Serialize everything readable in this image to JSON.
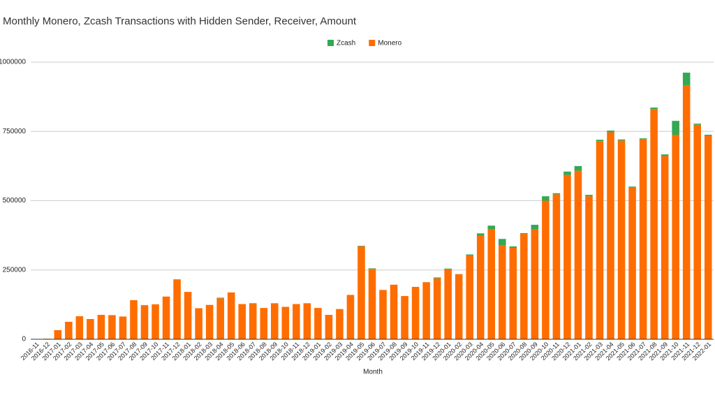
{
  "chart_data": {
    "type": "stacked_bar",
    "title": "Monthly Monero, Zcash Transactions with Hidden Sender, Receiver, Amount",
    "x_label": "Month",
    "categories": [
      "2016-11",
      "2016-12",
      "2017-01",
      "2017-02",
      "2017-03",
      "2017-04",
      "2017-05",
      "2017-06",
      "2017-07",
      "2017-08",
      "2017-09",
      "2017-10",
      "2017-11",
      "2017-12",
      "2018-01",
      "2018-02",
      "2018-03",
      "2018-04",
      "2018-05",
      "2018-06",
      "2018-07",
      "2018-08",
      "2018-09",
      "2018-10",
      "2018-11",
      "2018-12",
      "2019-01",
      "2019-02",
      "2019-03",
      "2019-04",
      "2019-05",
      "2019-06",
      "2019-07",
      "2019-08",
      "2019-09",
      "2019-10",
      "2019-11",
      "2019-12",
      "2020-01",
      "2020-02",
      "2020-03",
      "2020-04",
      "2020-05",
      "2020-06",
      "2020-07",
      "2020-08",
      "2020-09",
      "2020-10",
      "2020-11",
      "2020-12",
      "2021-01",
      "2021-02",
      "2021-03",
      "2021-04",
      "2021-05",
      "2021-06",
      "2021-07",
      "2021-08",
      "2021-09",
      "2021-10",
      "2021-11",
      "2021-12",
      "2022-01"
    ],
    "series": [
      {
        "name": "Zcash",
        "color": "#34a853",
        "values": [
          0,
          0,
          0,
          0,
          0,
          0,
          0,
          0,
          0,
          0,
          0,
          0,
          0,
          2000,
          0,
          0,
          0,
          2000,
          0,
          0,
          2000,
          0,
          0,
          0,
          0,
          0,
          0,
          0,
          0,
          0,
          2000,
          2000,
          0,
          0,
          0,
          0,
          0,
          3000,
          2000,
          0,
          4000,
          8000,
          12000,
          22000,
          5000,
          3000,
          17000,
          16000,
          4000,
          12000,
          17000,
          5000,
          5000,
          6000,
          4000,
          4000,
          3000,
          5000,
          6000,
          50000,
          45000,
          4000,
          4000
        ]
      },
      {
        "name": "Monero",
        "color": "#ff6d01",
        "values": [
          1000,
          2000,
          33000,
          63000,
          83000,
          73000,
          88000,
          87000,
          82000,
          141000,
          123000,
          126000,
          154000,
          214000,
          171000,
          112000,
          124000,
          148000,
          169000,
          127000,
          128000,
          113000,
          130000,
          117000,
          127000,
          130000,
          113000,
          88000,
          109000,
          160000,
          335000,
          254000,
          178000,
          197000,
          156000,
          189000,
          206000,
          220000,
          253000,
          235000,
          302000,
          374000,
          398000,
          340000,
          330000,
          380000,
          396000,
          500000,
          523000,
          593000,
          608000,
          516000,
          715000,
          747000,
          717000,
          547000,
          722000,
          831000,
          661000,
          738000,
          917000,
          774000,
          734000
        ]
      }
    ],
    "ylim": [
      0,
      1000000
    ],
    "yticks": [
      0,
      250000,
      500000,
      750000,
      1000000
    ],
    "grid": true,
    "legend": "top"
  }
}
